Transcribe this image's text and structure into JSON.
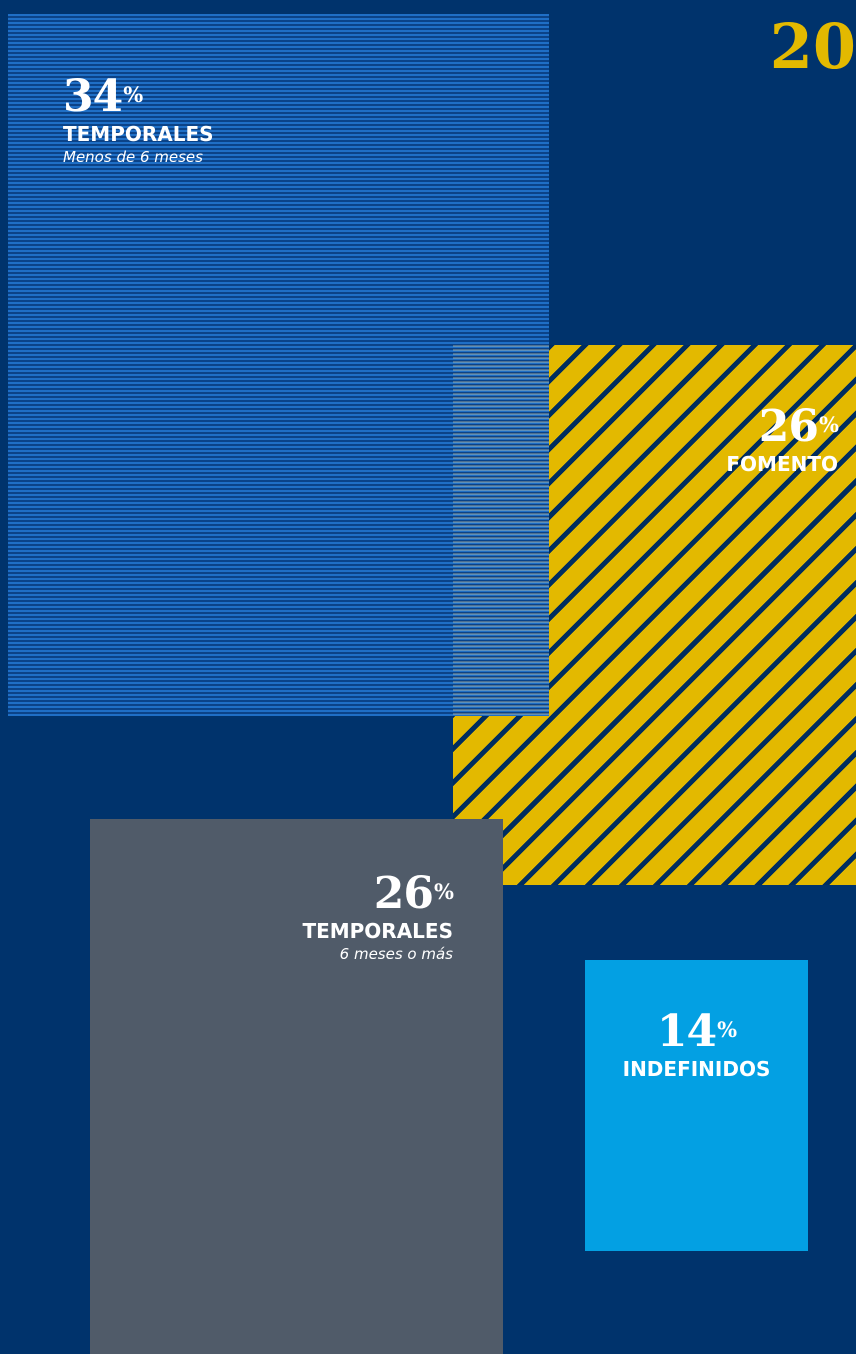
{
  "header": {
    "year_text": "20"
  },
  "chart_data": {
    "type": "area",
    "percent_sign": "%",
    "segments": [
      {
        "key": "temp_lt6",
        "value": 34,
        "label": "TEMPORALES",
        "sublabel": "Menos de 6 meses",
        "color": "#1f6fc6",
        "pattern": "horizontal-lines"
      },
      {
        "key": "fomento",
        "value": 26,
        "label": "FOMENTO",
        "sublabel": "",
        "color": "#e3b900",
        "pattern": "diagonal-stripes"
      },
      {
        "key": "temp_ge6",
        "value": 26,
        "label": "TEMPORALES",
        "sublabel": "6 meses o más",
        "color": "#505b69",
        "pattern": "solid"
      },
      {
        "key": "indef",
        "value": 14,
        "label": "INDEFINIDOS",
        "sublabel": "",
        "color": "#03a0e3",
        "pattern": "solid"
      }
    ]
  },
  "colors": {
    "background": "#00336c",
    "accent": "#e3b900",
    "text": "#ffffff"
  }
}
